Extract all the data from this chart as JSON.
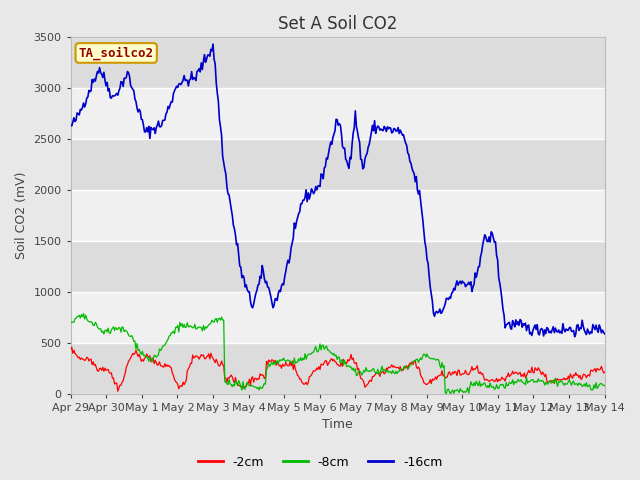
{
  "title": "Set A Soil CO2",
  "ylabel": "Soil CO2 (mV)",
  "xlabel": "Time",
  "legend_label": "TA_soilco2",
  "ylim": [
    0,
    3500
  ],
  "yticks": [
    0,
    500,
    1000,
    1500,
    2000,
    2500,
    3000,
    3500
  ],
  "fig_bg_color": "#e8e8e8",
  "plot_bg_color": "#f5f5f5",
  "band_color_dark": "#dcdcdc",
  "band_color_light": "#f0f0f0",
  "legend_box_facecolor": "#ffffcc",
  "legend_box_edgecolor": "#cc9900",
  "legend_label_color": "#990000",
  "line_colors": {
    "red": "#ff0000",
    "green": "#00bb00",
    "blue": "#0000cc"
  },
  "series_labels": [
    "-2cm",
    "-8cm",
    "-16cm"
  ],
  "x_tick_labels": [
    "Apr 29",
    "Apr 30",
    "May 1",
    "May 2",
    "May 3",
    "May 4",
    "May 5",
    "May 6",
    "May 7",
    "May 8",
    "May 9",
    "May 10",
    "May 11",
    "May 12",
    "May 13",
    "May 14"
  ],
  "title_fontsize": 12,
  "label_fontsize": 9,
  "tick_fontsize": 8,
  "legend_fontsize": 9
}
